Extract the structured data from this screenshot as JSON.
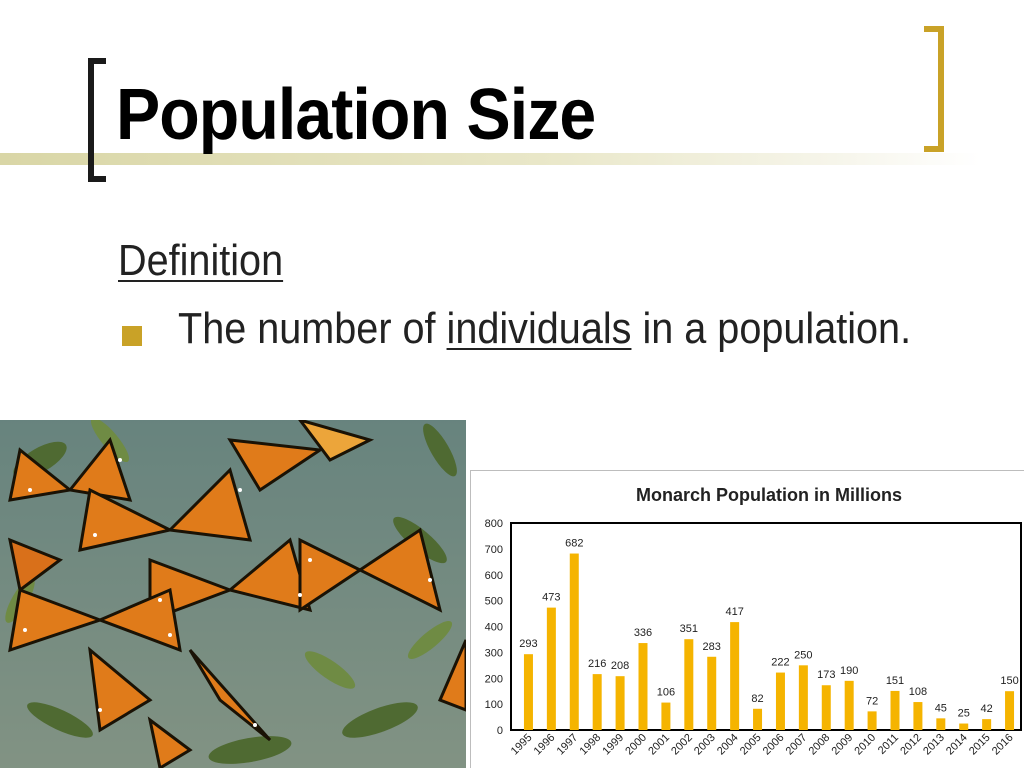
{
  "slide": {
    "title": "Population Size",
    "definition_heading": "Definition",
    "bullet": {
      "before": "The number of ",
      "underlined": "individuals",
      "after": " in a population."
    }
  },
  "colors": {
    "accent_gold": "#c9a227",
    "bar": "#f5b400",
    "title_rule": "#d9d6a6"
  },
  "icons": {
    "bullet": "square-bullet-icon"
  },
  "chart_data": {
    "type": "bar",
    "title": "Monarch Population in Millions",
    "xlabel": "",
    "ylabel": "",
    "ylim": [
      0,
      800
    ],
    "yticks": [
      0,
      100,
      200,
      300,
      400,
      500,
      600,
      700,
      800
    ],
    "grid": false,
    "categories": [
      "1995",
      "1996",
      "1997",
      "1998",
      "1999",
      "2000",
      "2001",
      "2002",
      "2003",
      "2004",
      "2005",
      "2006",
      "2007",
      "2008",
      "2009",
      "2010",
      "2011",
      "2012",
      "2013",
      "2014",
      "2015",
      "2016"
    ],
    "values": [
      293,
      473,
      682,
      216,
      208,
      336,
      106,
      351,
      283,
      417,
      82,
      222,
      250,
      173,
      190,
      72,
      151,
      108,
      45,
      25,
      42,
      150
    ]
  }
}
